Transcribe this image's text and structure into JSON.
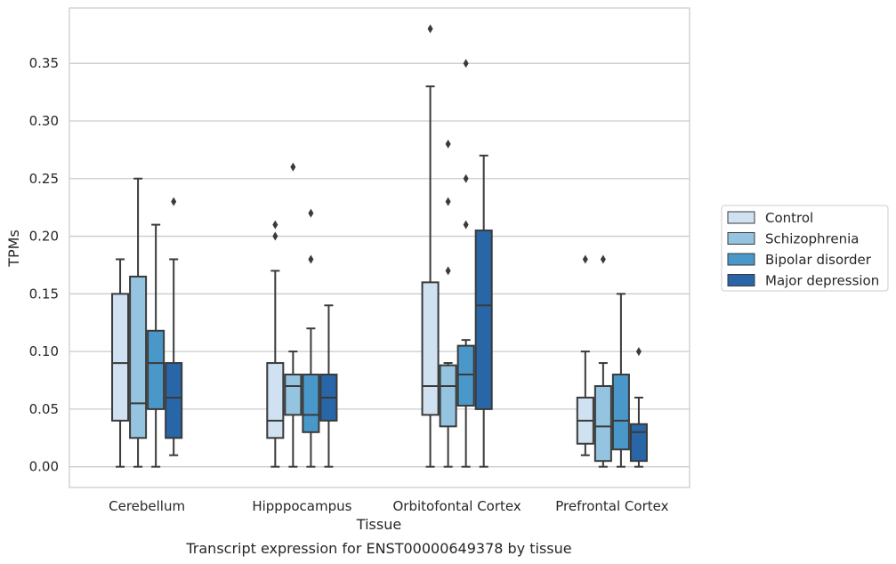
{
  "chart_data": {
    "type": "box",
    "title": "",
    "caption": "Transcript expression for ENST00000649378 by tissue",
    "xlabel": "Tissue",
    "ylabel": "TPMs",
    "ylim": [
      -0.018,
      0.398
    ],
    "yticks": [
      "0.00",
      "0.05",
      "0.10",
      "0.15",
      "0.20",
      "0.25",
      "0.30",
      "0.35"
    ],
    "grid": "horizontal",
    "legend_position": "right",
    "categories": [
      "Cerebellum",
      "Hipppocampus",
      "Orbitofontal Cortex",
      "Prefrontal Cortex"
    ],
    "series": [
      {
        "name": "Control",
        "color": "#d0e1f2",
        "boxes": [
          {
            "whislo": 0.0,
            "q1": 0.04,
            "med": 0.09,
            "q3": 0.15,
            "whishi": 0.18,
            "fliers": []
          },
          {
            "whislo": 0.0,
            "q1": 0.025,
            "med": 0.04,
            "q3": 0.09,
            "whishi": 0.17,
            "fliers": [
              0.2,
              0.21
            ]
          },
          {
            "whislo": 0.0,
            "q1": 0.045,
            "med": 0.07,
            "q3": 0.16,
            "whishi": 0.33,
            "fliers": [
              0.38
            ]
          },
          {
            "whislo": 0.01,
            "q1": 0.02,
            "med": 0.04,
            "q3": 0.06,
            "whishi": 0.1,
            "fliers": [
              0.18
            ]
          }
        ]
      },
      {
        "name": "Schizophrenia",
        "color": "#94c4df",
        "boxes": [
          {
            "whislo": 0.0,
            "q1": 0.025,
            "med": 0.055,
            "q3": 0.165,
            "whishi": 0.25,
            "fliers": []
          },
          {
            "whislo": 0.0,
            "q1": 0.045,
            "med": 0.07,
            "q3": 0.08,
            "whishi": 0.1,
            "fliers": [
              0.26
            ]
          },
          {
            "whislo": 0.0,
            "q1": 0.035,
            "med": 0.07,
            "q3": 0.088,
            "whishi": 0.09,
            "fliers": [
              0.17,
              0.23,
              0.28
            ]
          },
          {
            "whislo": 0.0,
            "q1": 0.005,
            "med": 0.035,
            "q3": 0.07,
            "whishi": 0.09,
            "fliers": [
              0.18
            ]
          }
        ]
      },
      {
        "name": "Bipolar disorder",
        "color": "#4a98c9",
        "boxes": [
          {
            "whislo": 0.0,
            "q1": 0.05,
            "med": 0.09,
            "q3": 0.118,
            "whishi": 0.21,
            "fliers": []
          },
          {
            "whislo": 0.0,
            "q1": 0.03,
            "med": 0.045,
            "q3": 0.08,
            "whishi": 0.12,
            "fliers": [
              0.18,
              0.22
            ]
          },
          {
            "whislo": 0.0,
            "q1": 0.053,
            "med": 0.08,
            "q3": 0.105,
            "whishi": 0.11,
            "fliers": [
              0.21,
              0.25,
              0.35
            ]
          },
          {
            "whislo": 0.0,
            "q1": 0.015,
            "med": 0.04,
            "q3": 0.08,
            "whishi": 0.15,
            "fliers": []
          }
        ]
      },
      {
        "name": "Major depression",
        "color": "#2866a8",
        "boxes": [
          {
            "whislo": 0.01,
            "q1": 0.025,
            "med": 0.06,
            "q3": 0.09,
            "whishi": 0.18,
            "fliers": [
              0.23
            ]
          },
          {
            "whislo": 0.0,
            "q1": 0.04,
            "med": 0.06,
            "q3": 0.08,
            "whishi": 0.14,
            "fliers": []
          },
          {
            "whislo": 0.0,
            "q1": 0.05,
            "med": 0.14,
            "q3": 0.205,
            "whishi": 0.27,
            "fliers": []
          },
          {
            "whislo": 0.0,
            "q1": 0.005,
            "med": 0.03,
            "q3": 0.037,
            "whishi": 0.06,
            "fliers": [
              0.1
            ]
          }
        ]
      }
    ]
  }
}
